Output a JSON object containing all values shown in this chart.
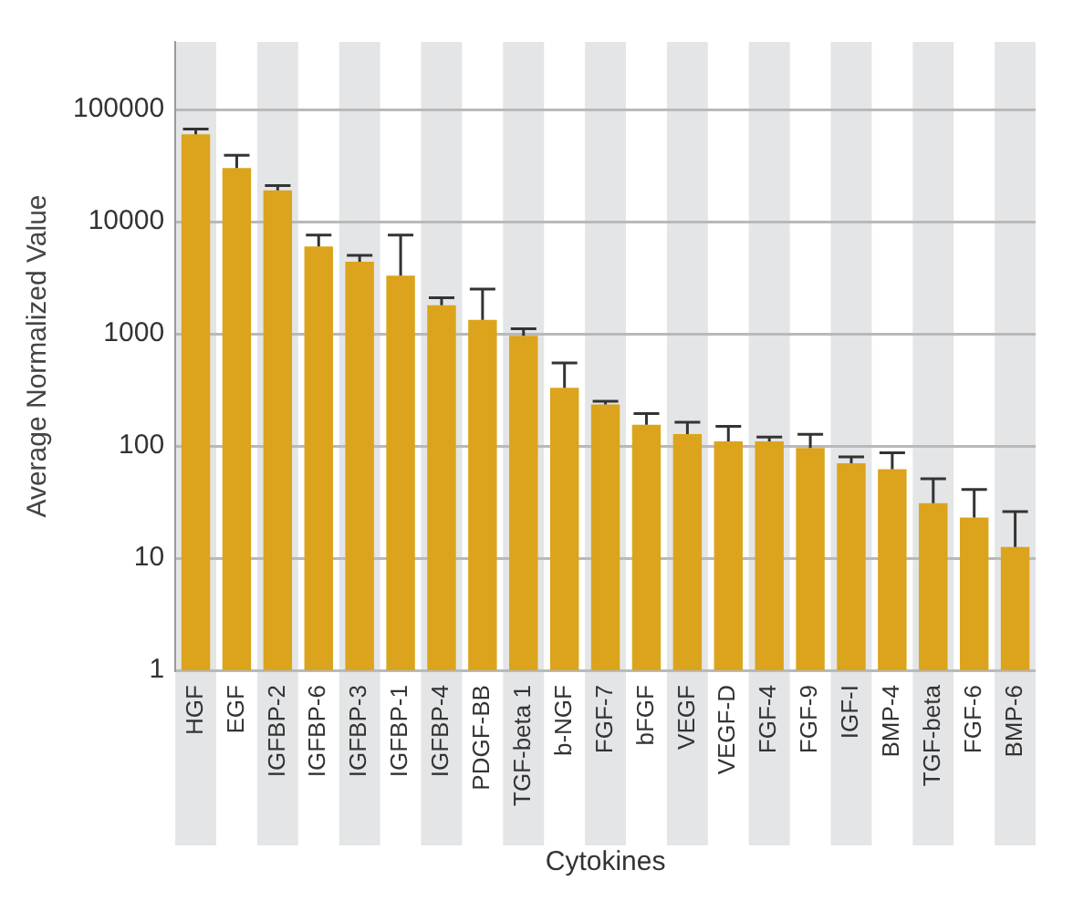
{
  "chart_data": {
    "type": "bar",
    "xlabel": "Cytokines",
    "ylabel": "Average Normalized Value",
    "categories": [
      "HGF",
      "EGF",
      "IGFBP-2",
      "IGFBP-6",
      "IGFBP-3",
      "IGFBP-1",
      "IGFBP-4",
      "PDGF-BB",
      "TGF-beta 1",
      "b-NGF",
      "FGF-7",
      "bFGF",
      "VEGF",
      "VEGF-D",
      "FGF-4",
      "FGF-9",
      "IGF-I",
      "BMP-4",
      "TGF-beta",
      "FGF-6",
      "BMP-6"
    ],
    "values": [
      60000,
      30000,
      19000,
      6000,
      4400,
      3300,
      1800,
      1330,
      960,
      330,
      235,
      155,
      128,
      110,
      110,
      96,
      70,
      62,
      31,
      23,
      12.6
    ],
    "errors": [
      [
        60000,
        67000
      ],
      [
        30000,
        39000
      ],
      [
        19000,
        21000
      ],
      [
        6000,
        7600
      ],
      [
        4400,
        5000
      ],
      [
        3300,
        7600
      ],
      [
        1800,
        2100
      ],
      [
        1330,
        2500
      ],
      [
        960,
        1110
      ],
      [
        330,
        550
      ],
      [
        235,
        250
      ],
      [
        155,
        195
      ],
      [
        128,
        163
      ],
      [
        110,
        150
      ],
      [
        110,
        120
      ],
      [
        96,
        127
      ],
      [
        70,
        80
      ],
      [
        62,
        87
      ],
      [
        31,
        51
      ],
      [
        23,
        41
      ],
      [
        12.6,
        26
      ]
    ],
    "color": "#dba41c",
    "log": "y",
    "ylim": [
      1,
      400000
    ],
    "yticks": [
      1,
      10,
      100,
      1000,
      10000,
      100000
    ],
    "grid": "y",
    "legend": false
  }
}
